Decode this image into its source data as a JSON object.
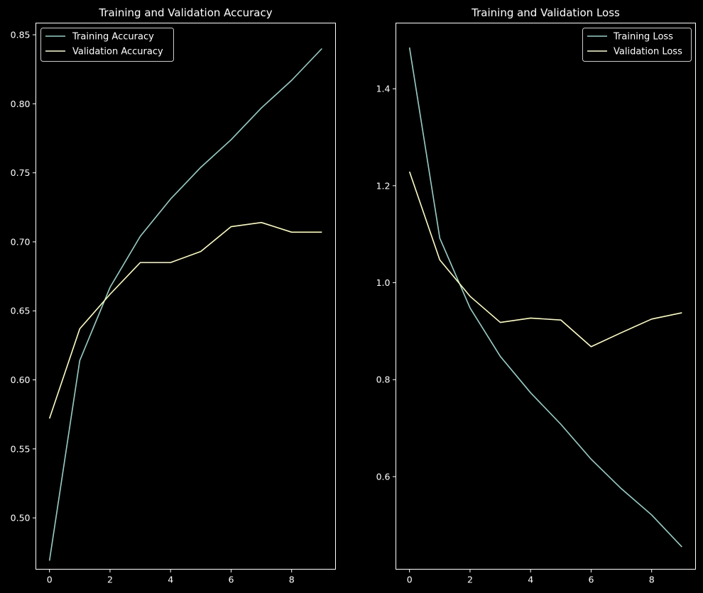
{
  "chart_data": [
    {
      "type": "line",
      "title": "Training and Validation Accuracy",
      "xlabel": "",
      "ylabel": "",
      "xlim": [
        -0.45,
        9.45
      ],
      "ylim": [
        0.4628,
        0.8585
      ],
      "xticks": [
        0,
        2,
        4,
        6,
        8
      ],
      "yticks": [
        0.5,
        0.55,
        0.6,
        0.65,
        0.7,
        0.75,
        0.8,
        0.85
      ],
      "ytick_decimals": 2,
      "grid": false,
      "legend_position": "upper-left",
      "x": [
        0,
        1,
        2,
        3,
        4,
        5,
        6,
        7,
        8,
        9
      ],
      "series": [
        {
          "name": "Training Accuracy",
          "color": "#8dd3c7",
          "values": [
            0.469,
            0.614,
            0.667,
            0.704,
            0.731,
            0.754,
            0.774,
            0.797,
            0.817,
            0.84
          ]
        },
        {
          "name": "Validation Accuracy",
          "color": "#ffffb3",
          "values": [
            0.572,
            0.637,
            0.662,
            0.685,
            0.685,
            0.693,
            0.711,
            0.714,
            0.707,
            0.707
          ]
        }
      ]
    },
    {
      "type": "line",
      "title": "Training and Validation Loss",
      "xlabel": "",
      "ylabel": "",
      "xlim": [
        -0.45,
        9.45
      ],
      "ylim": [
        0.409,
        1.5355
      ],
      "xticks": [
        0,
        2,
        4,
        6,
        8
      ],
      "yticks": [
        0.6,
        0.8,
        1.0,
        1.2,
        1.4
      ],
      "ytick_decimals": 1,
      "grid": false,
      "legend_position": "upper-right",
      "x": [
        0,
        1,
        2,
        3,
        4,
        5,
        6,
        7,
        8,
        9
      ],
      "series": [
        {
          "name": "Training Loss",
          "color": "#8dd3c7",
          "values": [
            1.485,
            1.092,
            0.948,
            0.848,
            0.773,
            0.708,
            0.636,
            0.575,
            0.521,
            0.455
          ]
        },
        {
          "name": "Validation Loss",
          "color": "#ffffb3",
          "values": [
            1.229,
            1.047,
            0.972,
            0.918,
            0.927,
            0.923,
            0.868,
            0.897,
            0.925,
            0.938
          ]
        }
      ]
    }
  ]
}
